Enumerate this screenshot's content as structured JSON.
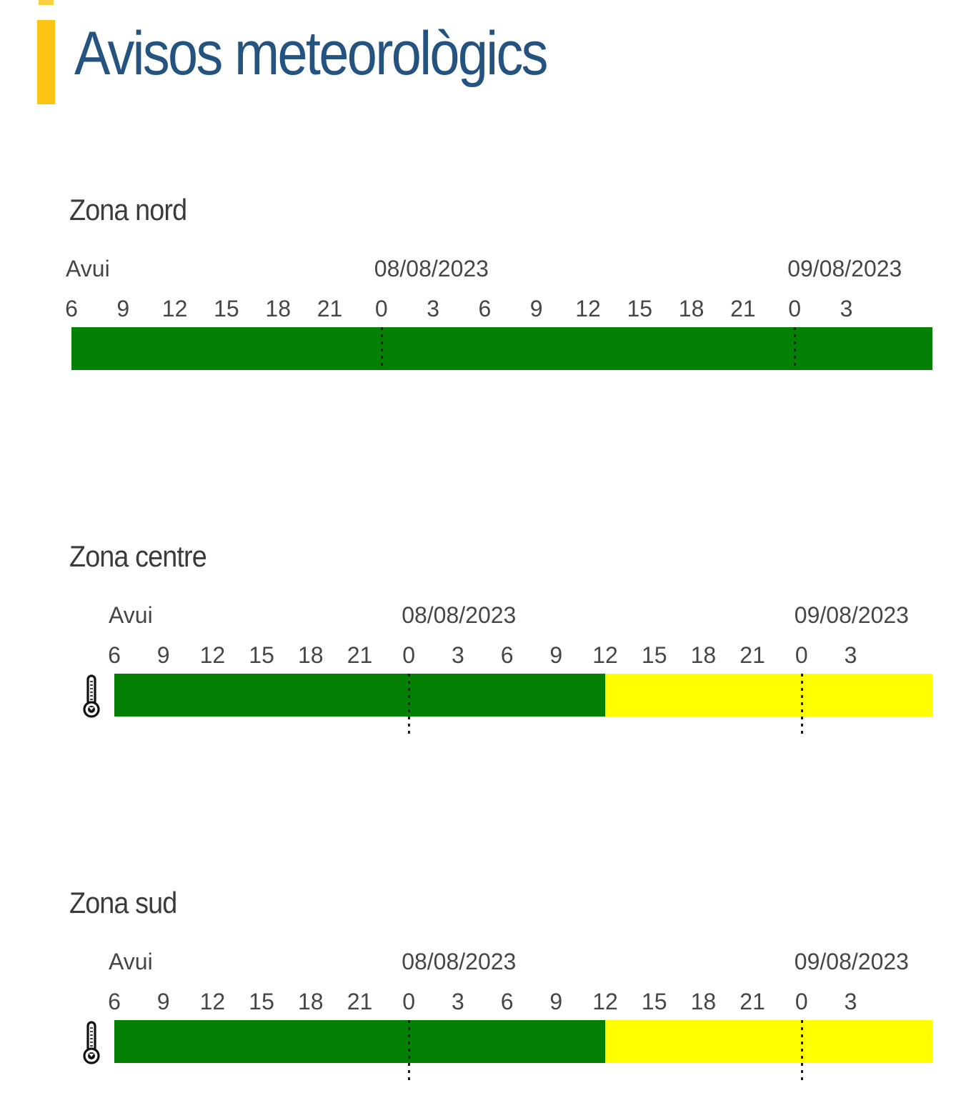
{
  "page": {
    "title": "Avisos meteorològics",
    "accent_color": "#f9c414"
  },
  "colors": {
    "green": "#048104",
    "yellow": "#ffff00",
    "title_blue": "#245380",
    "heading_gray": "#3b3b3b",
    "tick_text": "#464646",
    "separator": "#1c1c1c"
  },
  "timeline": {
    "today_label": "Avui",
    "dates": [
      "08/08/2023",
      "09/08/2023"
    ],
    "hour_ticks": [
      "6",
      "9",
      "12",
      "15",
      "18",
      "21",
      "0",
      "3",
      "6",
      "9",
      "12",
      "15",
      "18",
      "21",
      "0",
      "3"
    ],
    "tick_interval_hours": 3,
    "span_hours": 50,
    "start": "Avui 06:00",
    "end": "09/08/2023 08:00",
    "midnight_fractions": [
      0.36,
      0.84
    ]
  },
  "zones": [
    {
      "name": "Zona nord",
      "icon": null,
      "segments": [
        {
          "level": "green",
          "meaning": "no-warning",
          "from_hour": 0,
          "to_hour": 50
        }
      ]
    },
    {
      "name": "Zona centre",
      "icon": "thermometer-icon",
      "segments": [
        {
          "level": "green",
          "meaning": "no-warning",
          "from_hour": 0,
          "to_hour": 30
        },
        {
          "level": "yellow",
          "meaning": "yellow-warning-temperature",
          "from_hour": 30,
          "to_hour": 50
        }
      ]
    },
    {
      "name": "Zona sud",
      "icon": "thermometer-icon",
      "segments": [
        {
          "level": "green",
          "meaning": "no-warning",
          "from_hour": 0,
          "to_hour": 30
        },
        {
          "level": "yellow",
          "meaning": "yellow-warning-temperature",
          "from_hour": 30,
          "to_hour": 50
        }
      ]
    }
  ],
  "chart_data": [
    {
      "type": "bar",
      "title": "Zona nord",
      "orientation": "horizontal-timeline",
      "x_start": "Avui 06:00",
      "x_end": "09/08/2023 08:00",
      "span_hours": 50,
      "tick_interval_hours": 3,
      "x_ticks": [
        "6",
        "9",
        "12",
        "15",
        "18",
        "21",
        "0",
        "3",
        "6",
        "9",
        "12",
        "15",
        "18",
        "21",
        "0",
        "3"
      ],
      "date_markers": [
        {
          "label": "Avui",
          "at_hour": 0
        },
        {
          "label": "08/08/2023",
          "at_hour": 18
        },
        {
          "label": "09/08/2023",
          "at_hour": 42
        }
      ],
      "series": [
        {
          "name": "warning-level",
          "segments": [
            {
              "level": "green",
              "color": "#048104",
              "from_hour": 0,
              "to_hour": 50
            }
          ]
        }
      ],
      "legend_position": "none",
      "grid": false
    },
    {
      "type": "bar",
      "title": "Zona centre",
      "orientation": "horizontal-timeline",
      "x_start": "Avui 06:00",
      "x_end": "09/08/2023 08:00",
      "span_hours": 50,
      "tick_interval_hours": 3,
      "x_ticks": [
        "6",
        "9",
        "12",
        "15",
        "18",
        "21",
        "0",
        "3",
        "6",
        "9",
        "12",
        "15",
        "18",
        "21",
        "0",
        "3"
      ],
      "date_markers": [
        {
          "label": "Avui",
          "at_hour": 0
        },
        {
          "label": "08/08/2023",
          "at_hour": 18
        },
        {
          "label": "09/08/2023",
          "at_hour": 42
        }
      ],
      "icon": "thermometer-icon",
      "series": [
        {
          "name": "warning-level",
          "segments": [
            {
              "level": "green",
              "color": "#048104",
              "from_hour": 0,
              "to_hour": 30
            },
            {
              "level": "yellow",
              "color": "#ffff00",
              "from_hour": 30,
              "to_hour": 50
            }
          ]
        }
      ],
      "legend_position": "none",
      "grid": false
    },
    {
      "type": "bar",
      "title": "Zona sud",
      "orientation": "horizontal-timeline",
      "x_start": "Avui 06:00",
      "x_end": "09/08/2023 08:00",
      "span_hours": 50,
      "tick_interval_hours": 3,
      "x_ticks": [
        "6",
        "9",
        "12",
        "15",
        "18",
        "21",
        "0",
        "3",
        "6",
        "9",
        "12",
        "15",
        "18",
        "21",
        "0",
        "3"
      ],
      "date_markers": [
        {
          "label": "Avui",
          "at_hour": 0
        },
        {
          "label": "08/08/2023",
          "at_hour": 18
        },
        {
          "label": "09/08/2023",
          "at_hour": 42
        }
      ],
      "icon": "thermometer-icon",
      "series": [
        {
          "name": "warning-level",
          "segments": [
            {
              "level": "green",
              "color": "#048104",
              "from_hour": 0,
              "to_hour": 30
            },
            {
              "level": "yellow",
              "color": "#ffff00",
              "from_hour": 30,
              "to_hour": 50
            }
          ]
        }
      ],
      "legend_position": "none",
      "grid": false
    }
  ]
}
